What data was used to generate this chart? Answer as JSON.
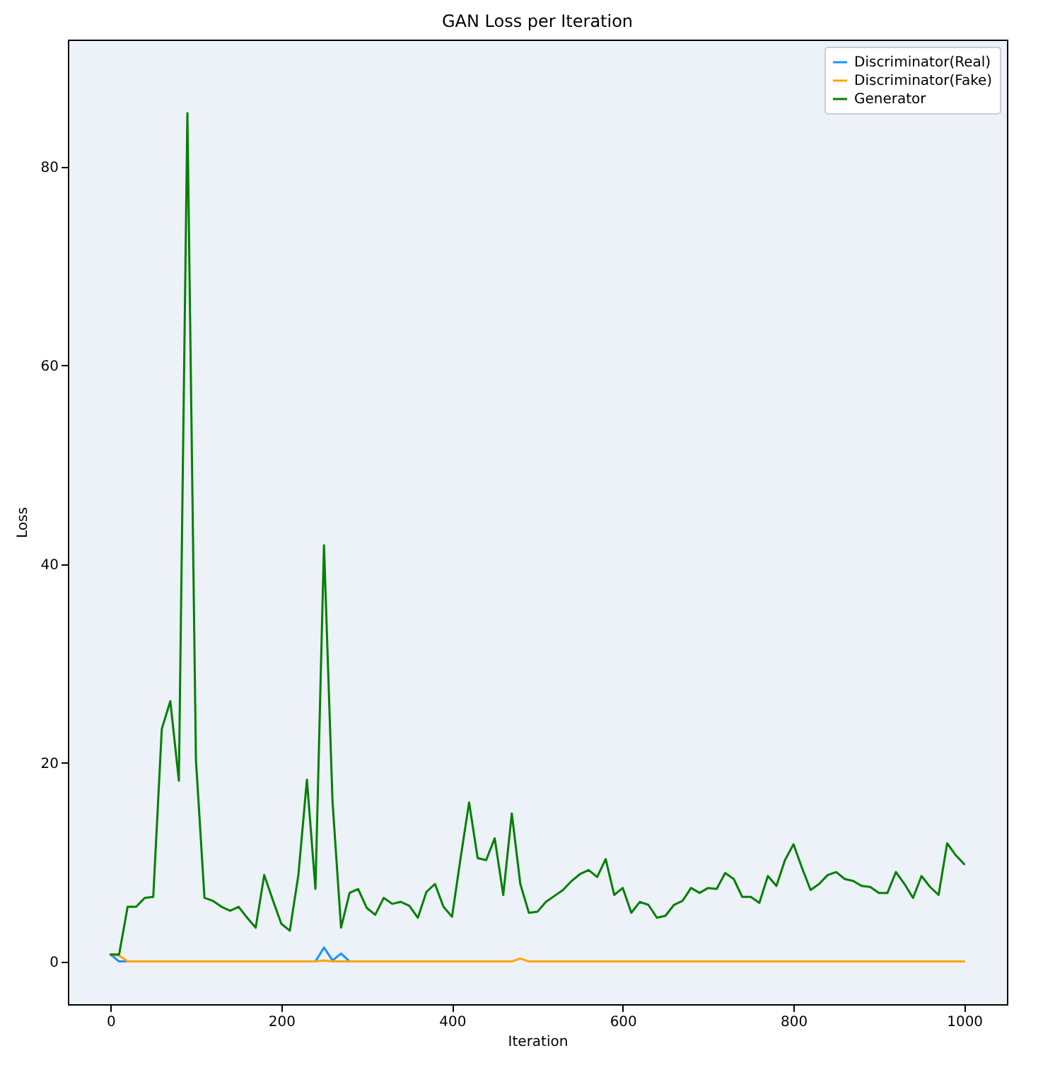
{
  "chart_data": {
    "type": "line",
    "title": "GAN Loss per Iteration",
    "xlabel": "Iteration",
    "ylabel": "Loss",
    "x": [
      0,
      10,
      20,
      30,
      40,
      50,
      60,
      70,
      80,
      90,
      100,
      110,
      120,
      130,
      140,
      150,
      160,
      170,
      180,
      190,
      200,
      210,
      220,
      230,
      240,
      250,
      260,
      270,
      280,
      290,
      300,
      310,
      320,
      330,
      340,
      350,
      360,
      370,
      380,
      390,
      400,
      410,
      420,
      430,
      440,
      450,
      460,
      470,
      480,
      490,
      500,
      510,
      520,
      530,
      540,
      550,
      560,
      570,
      580,
      590,
      600,
      610,
      620,
      630,
      640,
      650,
      660,
      670,
      680,
      690,
      700,
      710,
      720,
      730,
      740,
      750,
      760,
      770,
      780,
      790,
      800,
      810,
      820,
      830,
      840,
      850,
      860,
      870,
      880,
      890,
      900,
      910,
      920,
      930,
      940,
      950,
      960,
      970,
      980,
      990,
      1000
    ],
    "series": [
      {
        "name": "Discriminator(Real)",
        "color": "#1e90ff",
        "values": [
          0.7,
          0,
          0,
          null,
          null,
          null,
          null,
          null,
          null,
          null,
          null,
          null,
          null,
          null,
          null,
          null,
          null,
          null,
          null,
          null,
          null,
          null,
          null,
          null,
          0,
          1.4,
          0.1,
          0.8,
          0,
          null,
          null,
          null,
          null,
          null,
          null,
          null,
          null,
          null,
          null,
          null,
          null,
          null,
          null,
          null,
          null,
          null,
          null,
          null,
          null,
          null,
          null,
          null,
          null,
          null,
          null,
          null,
          null,
          null,
          null,
          null,
          null,
          null,
          null,
          null,
          null,
          null,
          null,
          null,
          null,
          null,
          null,
          null,
          null,
          null,
          null,
          null,
          null,
          null,
          null,
          null,
          null,
          null,
          null,
          null,
          null,
          null,
          null,
          null,
          null,
          null,
          null,
          null,
          null,
          null,
          null,
          null,
          null,
          null,
          null,
          null,
          null
        ]
      },
      {
        "name": "Discriminator(Fake)",
        "color": "#ffa500",
        "values": [
          0.7,
          0.6,
          0,
          0,
          0,
          0,
          0,
          0,
          0,
          0,
          0,
          0,
          0,
          0,
          0,
          0,
          0,
          0,
          0,
          0,
          0,
          0,
          0,
          0,
          0,
          0.1,
          0,
          0,
          0,
          0,
          0,
          0,
          0,
          0,
          0,
          0,
          0,
          0,
          0,
          0,
          0,
          0,
          0,
          0,
          0,
          0,
          0,
          0,
          0.3,
          0,
          0,
          0,
          0,
          0,
          0,
          0,
          0,
          0,
          0,
          0,
          0,
          0,
          0,
          0,
          0,
          0,
          0,
          0,
          0,
          0,
          0,
          0,
          0,
          0,
          0,
          0,
          0,
          0,
          0,
          0,
          0,
          0,
          0,
          0,
          0,
          0,
          0,
          0,
          0,
          0,
          0,
          0,
          0,
          0,
          0,
          0,
          0,
          0,
          0,
          0,
          0
        ]
      },
      {
        "name": "Generator",
        "color": "#008000",
        "values": [
          0.7,
          0.7,
          5.5,
          5.5,
          6.4,
          6.5,
          23.4,
          26.2,
          18.2,
          85.4,
          20.3,
          6.4,
          6.1,
          5.5,
          5.1,
          5.5,
          4.4,
          3.4,
          8.7,
          6.2,
          3.8,
          3.1,
          8.7,
          18.3,
          7.3,
          41.9,
          16.1,
          3.4,
          6.9,
          7.3,
          5.4,
          4.7,
          6.4,
          5.8,
          6.0,
          5.6,
          4.4,
          7.0,
          7.8,
          5.5,
          4.5,
          10.4,
          16.0,
          10.4,
          10.2,
          12.4,
          6.7,
          14.9,
          7.8,
          4.9,
          5.0,
          6.0,
          6.6,
          7.2,
          8.1,
          8.8,
          9.2,
          8.5,
          10.3,
          6.7,
          7.4,
          4.9,
          6.0,
          5.7,
          4.4,
          4.6,
          5.7,
          6.1,
          7.4,
          6.9,
          7.4,
          7.3,
          8.9,
          8.3,
          6.5,
          6.5,
          5.9,
          8.6,
          7.6,
          10.2,
          11.8,
          9.4,
          7.2,
          7.8,
          8.7,
          9.0,
          8.3,
          8.1,
          7.6,
          7.5,
          6.9,
          6.9,
          9.0,
          7.8,
          6.4,
          8.6,
          7.5,
          6.7,
          11.9,
          10.7,
          9.8
        ]
      }
    ],
    "xlim": [
      -50,
      1050
    ],
    "ylim": [
      -4.3,
      92.8
    ],
    "xticks": [
      0,
      200,
      400,
      600,
      800,
      1000
    ],
    "yticks": [
      0,
      20,
      40,
      60,
      80
    ],
    "legend": "top right",
    "grid": false,
    "line_style": "solid"
  }
}
